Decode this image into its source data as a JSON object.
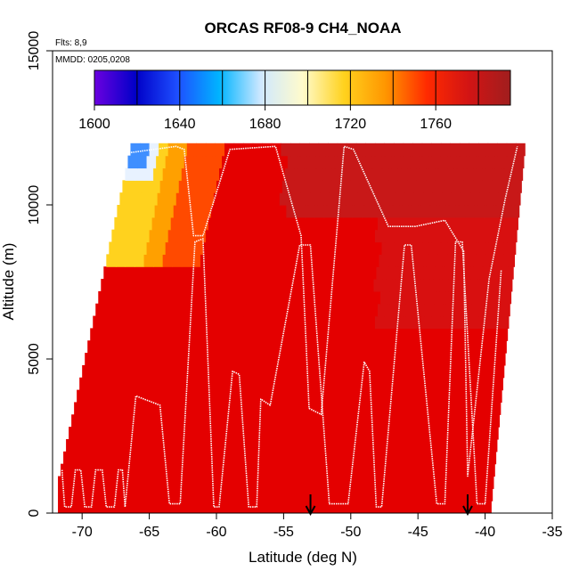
{
  "chart_data": {
    "type": "heatmap",
    "title": "ORCAS RF08-9 CH4_NOAA",
    "annotations": [
      "Flts: 8,9",
      "MMDD: 0205,0208"
    ],
    "xlabel": "Latitude (deg N)",
    "ylabel": "Altitude (m)",
    "xlim": [
      -72.2,
      -35
    ],
    "ylim": [
      0,
      15000
    ],
    "x_ticks": [
      -70,
      -65,
      -60,
      -55,
      -50,
      -45,
      -40,
      -35
    ],
    "y_ticks": [
      0,
      5000,
      10000,
      15000
    ],
    "colorbar": {
      "min": 1600,
      "max": 1795,
      "ticks": [
        1600,
        1640,
        1680,
        1720,
        1760
      ],
      "boundaries": [
        1600,
        1620,
        1640,
        1660,
        1680,
        1700,
        1720,
        1740,
        1760,
        1780,
        1795
      ],
      "colors": [
        "#6b00e0",
        "#0000c8",
        "#1e4fff",
        "#00b4ff",
        "#cfe8ff",
        "#fffbcc",
        "#ffd21e",
        "#ff9600",
        "#ff2a00",
        "#d21414",
        "#a01e1e"
      ]
    },
    "arrows_at_latitude": [
      -53,
      -41.3
    ],
    "grid": false,
    "legend": "none"
  },
  "colors": {
    "background_field": "#e40000",
    "flight_track": "#ffffff"
  }
}
